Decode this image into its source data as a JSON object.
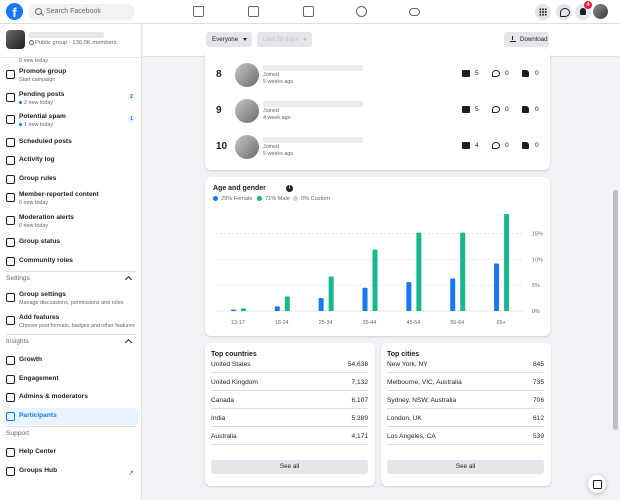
{
  "topbar": {
    "search_placeholder": "Search Facebook",
    "notifications_count": "4",
    "brand_color": "#1877f2"
  },
  "group": {
    "meta": "Public group · 136.0K members"
  },
  "sidebar": {
    "items_top": [
      {
        "label": "Promote group",
        "sub": "Start campaign",
        "icon": "megaphone-icon"
      },
      {
        "label": "Pending posts",
        "sub": "2 new today",
        "badge": "2",
        "icon": "pending-posts-icon"
      },
      {
        "label": "Potential spam",
        "sub": "1 new today",
        "badge": "1",
        "icon": "spam-icon"
      },
      {
        "label": "Scheduled posts",
        "icon": "scheduled-icon"
      },
      {
        "label": "Activity log",
        "icon": "activity-log-icon"
      },
      {
        "label": "Group rules",
        "icon": "rules-icon"
      },
      {
        "label": "Member-reported content",
        "sub": "0 new today",
        "icon": "report-icon"
      },
      {
        "label": "Moderation alerts",
        "sub": "0 new today",
        "icon": "alert-icon"
      },
      {
        "label": "Group status",
        "icon": "status-icon"
      },
      {
        "label": "Community roles",
        "icon": "roles-icon"
      }
    ],
    "partial_top_sub": "0 new today",
    "settings_section": "Settings",
    "settings_items": [
      {
        "label": "Group settings",
        "sub": "Manage discussions, permissions and roles"
      },
      {
        "label": "Add features",
        "sub": "Choose post formats, badges and other features"
      }
    ],
    "insights_section": "Insights",
    "insights_items": [
      {
        "label": "Growth"
      },
      {
        "label": "Engagement"
      },
      {
        "label": "Admins & moderators"
      },
      {
        "label": "Participants"
      }
    ],
    "support_section": "Support",
    "support_items": [
      {
        "label": "Help Center"
      },
      {
        "label": "Groups Hub"
      }
    ]
  },
  "filters": {
    "audience": "Everyone",
    "period": "Last 28 days",
    "download_label": "Download"
  },
  "top_contributors": [
    {
      "rank": "8",
      "status": "Joined",
      "ago": "5 weeks ago",
      "posts": "5",
      "comments": "0",
      "likes": "0"
    },
    {
      "rank": "9",
      "status": "Joined",
      "ago": "4 week ago",
      "posts": "5",
      "comments": "0",
      "likes": "0"
    },
    {
      "rank": "10",
      "status": "Joined",
      "ago": "5 weeks ago",
      "posts": "4",
      "comments": "0",
      "likes": "0"
    }
  ],
  "age_gender": {
    "title": "Age and gender",
    "legend": [
      {
        "label": "29% Female",
        "color": "#1877f2"
      },
      {
        "label": "71% Male",
        "color": "#17b890"
      },
      {
        "label": "0% Custom",
        "color": "#ccd0d5"
      }
    ]
  },
  "chart_data": {
    "type": "bar",
    "title": "Age and gender",
    "categories": [
      "13-17",
      "18-24",
      "25-34",
      "35-44",
      "45-54",
      "55-64",
      "65+"
    ],
    "series": [
      {
        "name": "29% Female",
        "values": [
          0.3,
          0.9,
          2.5,
          4.5,
          5.6,
          6.3,
          9.2
        ]
      },
      {
        "name": "71% Male",
        "values": [
          0.5,
          2.8,
          6.7,
          11.9,
          15.2,
          15.2,
          18.8
        ]
      },
      {
        "name": "0% Custom",
        "values": [
          0,
          0,
          0,
          0,
          0,
          0,
          0
        ]
      }
    ],
    "y_ticks": [
      "0%",
      "5%",
      "10%",
      "15%"
    ],
    "ylim": [
      0,
      19
    ],
    "grid": true,
    "legend_position": "top-left"
  },
  "top_countries": {
    "title": "Top countries",
    "rows": [
      {
        "name": "United States",
        "value": "54,638"
      },
      {
        "name": "United Kingdom",
        "value": "7,132"
      },
      {
        "name": "Canada",
        "value": "6,107"
      },
      {
        "name": "India",
        "value": "5,389"
      },
      {
        "name": "Australia",
        "value": "4,171"
      }
    ],
    "see_all": "See all"
  },
  "top_cities": {
    "title": "Top cities",
    "rows": [
      {
        "name": "New York, NY",
        "value": "845"
      },
      {
        "name": "Melbourne, VIC, Australia",
        "value": "735"
      },
      {
        "name": "Sydney, NSW, Australia",
        "value": "706"
      },
      {
        "name": "London, UK",
        "value": "612"
      },
      {
        "name": "Los Angeles, CA",
        "value": "539"
      }
    ],
    "see_all": "See all"
  }
}
